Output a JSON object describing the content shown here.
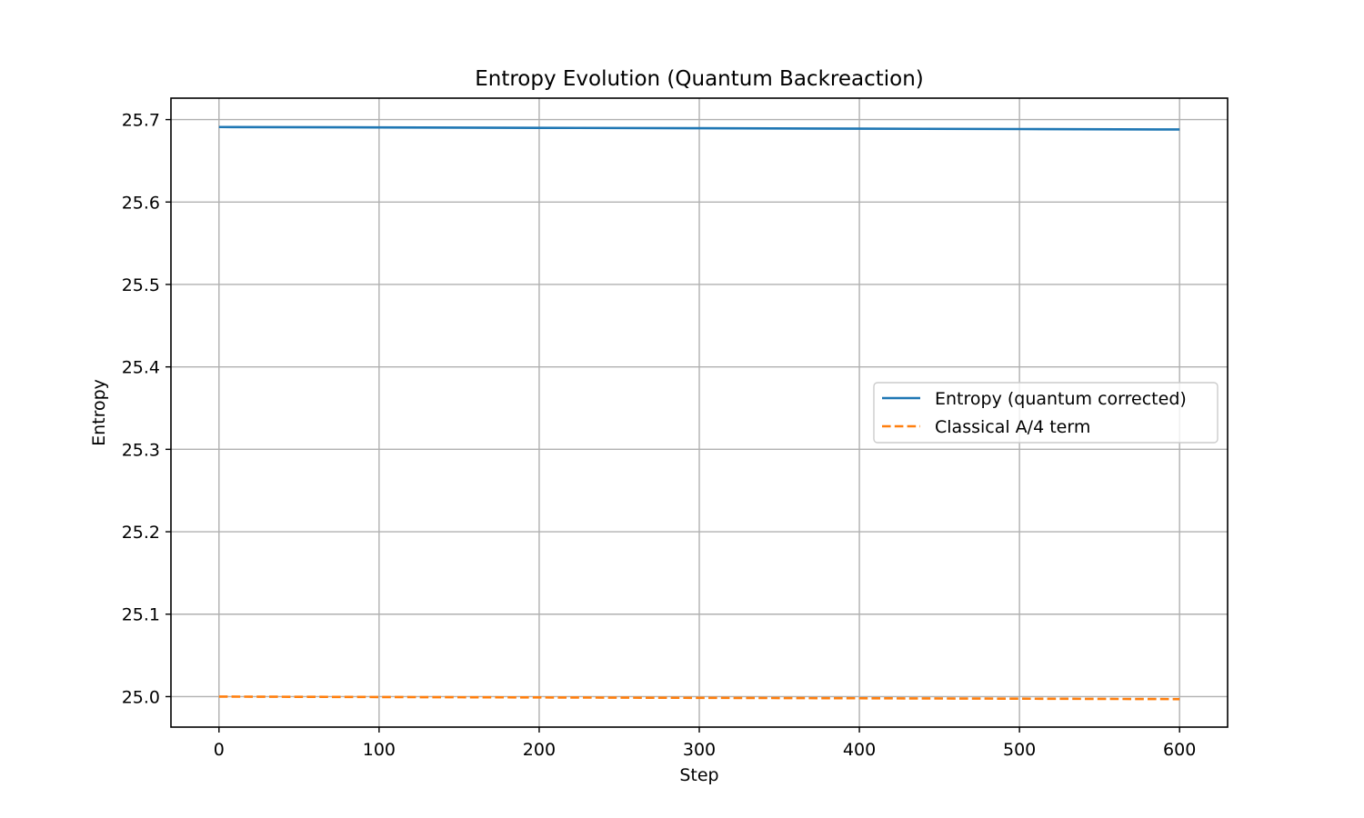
{
  "chart_data": {
    "type": "line",
    "title": "Entropy Evolution (Quantum Backreaction)",
    "xlabel": "Step",
    "ylabel": "Entropy",
    "xlim": [
      -30,
      630
    ],
    "ylim": [
      24.963,
      25.726
    ],
    "xticks": [
      0,
      100,
      200,
      300,
      400,
      500,
      600
    ],
    "yticks": [
      25.0,
      25.1,
      25.2,
      25.3,
      25.4,
      25.5,
      25.6,
      25.7
    ],
    "xtick_labels": [
      "0",
      "100",
      "200",
      "300",
      "400",
      "500",
      "600"
    ],
    "ytick_labels": [
      "25.0",
      "25.1",
      "25.2",
      "25.3",
      "25.4",
      "25.5",
      "25.6",
      "25.7"
    ],
    "grid": true,
    "legend_position": "center-right",
    "series": [
      {
        "name": "Entropy (quantum corrected)",
        "color": "#1f77b4",
        "style": "solid",
        "x": [
          0,
          100,
          200,
          300,
          400,
          500,
          600
        ],
        "y": [
          25.691,
          25.6905,
          25.69,
          25.6895,
          25.689,
          25.6885,
          25.688
        ]
      },
      {
        "name": "Classical A/4 term",
        "color": "#ff7f0e",
        "style": "dashed",
        "x": [
          0,
          100,
          200,
          300,
          400,
          500,
          600
        ],
        "y": [
          25.0,
          24.9995,
          24.999,
          24.9985,
          24.998,
          24.9975,
          24.997
        ]
      }
    ]
  }
}
